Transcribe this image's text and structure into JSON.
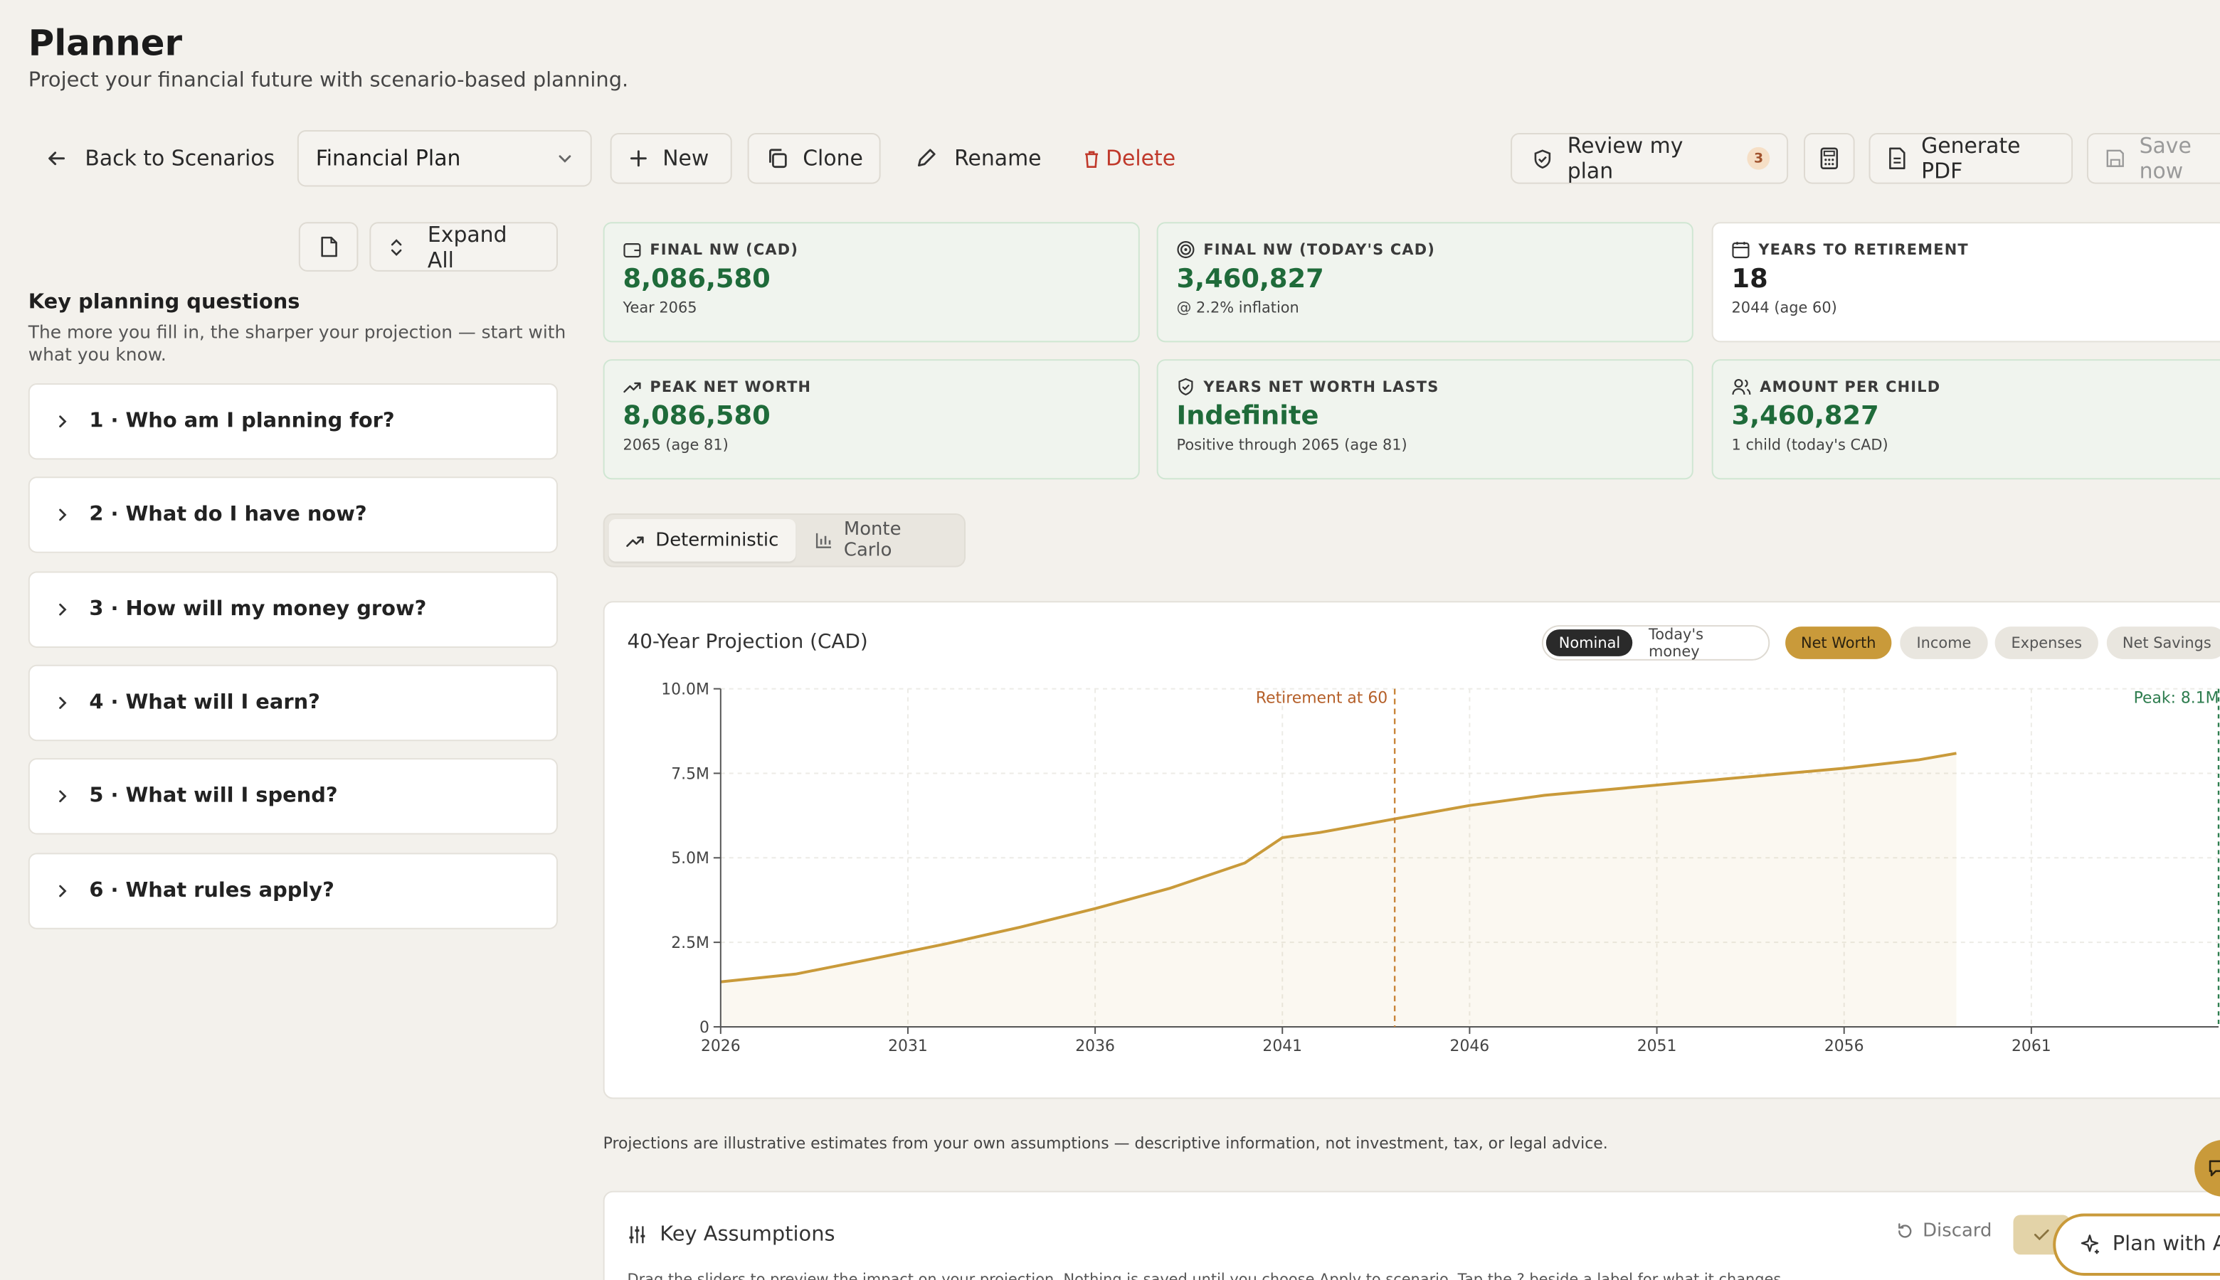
{
  "page": {
    "title": "Planner",
    "subtitle": "Project your financial future with scenario-based planning."
  },
  "toolbar": {
    "back_label": "Back to Scenarios",
    "plan_select_value": "Financial Plan",
    "new_label": "New",
    "clone_label": "Clone",
    "rename_label": "Rename",
    "delete_label": "Delete",
    "review_label": "Review my plan",
    "review_badge": "3",
    "generate_pdf_label": "Generate PDF",
    "save_label": "Save now"
  },
  "sidebar": {
    "expand_all_label": "Expand All",
    "heading": "Key planning questions",
    "description": "The more you fill in, the sharper your projection — start with what you know.",
    "questions": [
      "1 · Who am I planning for?",
      "2 · What do I have now?",
      "3 · How will my money grow?",
      "4 · What will I earn?",
      "5 · What will I spend?",
      "6 · What rules apply?"
    ]
  },
  "stats": [
    {
      "label": "FINAL NW (CAD)",
      "value": "8,086,580",
      "sub": "Year 2065",
      "icon": "wallet-icon"
    },
    {
      "label": "FINAL NW (TODAY'S CAD)",
      "value": "3,460,827",
      "sub": "@ 2.2% inflation",
      "icon": "target-icon"
    },
    {
      "label": "YEARS TO RETIREMENT",
      "value": "18",
      "sub": "2044 (age 60)",
      "icon": "calendar-clock-icon"
    },
    {
      "label": "PEAK NET WORTH",
      "value": "8,086,580",
      "sub": "2065 (age 81)",
      "icon": "trending-up-icon"
    },
    {
      "label": "YEARS NET WORTH LASTS",
      "value": "Indefinite",
      "sub": "Positive through 2065 (age 81)",
      "icon": "shield-check-icon"
    },
    {
      "label": "AMOUNT PER CHILD",
      "value": "3,460,827",
      "sub": "1 child (today's CAD)",
      "icon": "users-icon"
    }
  ],
  "mode_tabs": {
    "deterministic": "Deterministic",
    "monte_carlo": "Monte Carlo"
  },
  "chart_card": {
    "title": "40-Year Projection (CAD)",
    "money_toggle": [
      "Nominal",
      "Today's money"
    ],
    "series_chips": [
      "Net Worth",
      "Income",
      "Expenses",
      "Net Savings"
    ]
  },
  "chart_data": {
    "type": "area",
    "title": "40-Year Projection (CAD)",
    "x": [
      2026,
      2028,
      2030,
      2032,
      2034,
      2036,
      2038,
      2040,
      2041,
      2042,
      2044,
      2046,
      2048,
      2050,
      2052,
      2054,
      2056,
      2058,
      2059
    ],
    "series": [
      {
        "name": "Net Worth",
        "values": [
          1.33,
          1.56,
          2.0,
          2.45,
          2.95,
          3.5,
          4.1,
          4.85,
          5.6,
          5.75,
          6.15,
          6.55,
          6.85,
          7.05,
          7.25,
          7.45,
          7.65,
          7.9,
          8.09
        ]
      }
    ],
    "x_ticks": [
      "2026",
      "2031",
      "2036",
      "2041",
      "2046",
      "2051",
      "2056",
      "2061"
    ],
    "y_ticks": [
      "0",
      "2.5M",
      "5.0M",
      "7.5M",
      "10.0M"
    ],
    "ylim": [
      0,
      10
    ],
    "xlim": [
      2026,
      2066
    ],
    "annotations": [
      {
        "text": "Retirement at 60",
        "x": 2044
      },
      {
        "text": "Peak: 8.1M",
        "x": 2066
      }
    ],
    "grid": true,
    "colors": {
      "net_worth": "#c99a3a",
      "retirement_line": "#c9853a",
      "peak_line": "#2e7d4f"
    }
  },
  "disclaimer": "Projections are illustrative estimates from your own assumptions — descriptive information, not investment, tax, or legal advice.",
  "assumptions": {
    "title": "Key Assumptions",
    "discard_label": "Discard",
    "hint": "Drag the sliders to preview the impact on your projection. Nothing is saved until you choose Apply to scenario. Tap the ? beside a label for what it changes."
  },
  "fab": {
    "plan_label": "Plan with AI"
  },
  "colors": {
    "accent": "#c99a3a",
    "green_value": "#1f6b3a",
    "delete_red": "#c0392b",
    "background": "#f3f1ec"
  }
}
